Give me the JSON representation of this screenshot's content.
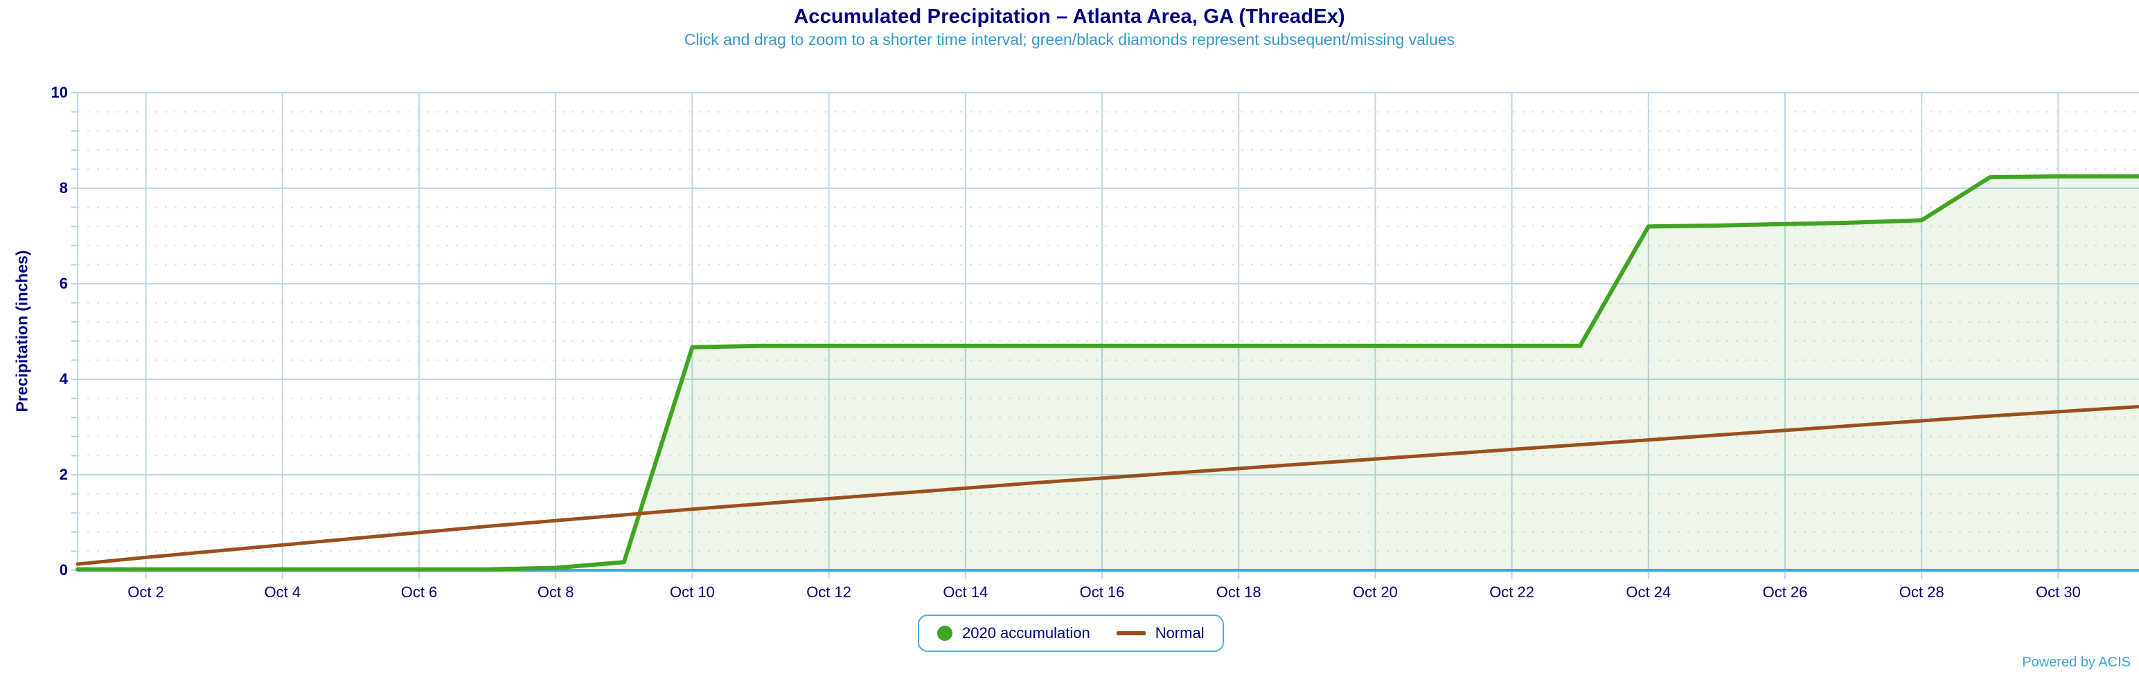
{
  "header": {
    "title": "Accumulated Precipitation – Atlanta Area, GA (ThreadEx)",
    "subtitle": "Click and drag to zoom to a shorter time interval; green/black diamonds represent subsequent/missing values"
  },
  "credits": "Powered by ACIS",
  "colors": {
    "title": "#000080",
    "subtitle": "#3399cc",
    "axis_label": "#000080",
    "grid_major": "#bdd7e9",
    "grid_minor": "#d6e3ee",
    "minor_tick": "#b6cfe2",
    "axis_line": "#3fa8da",
    "plot_border": "#bdd7e9",
    "legend_border": "#54a9dc",
    "credits": "#3ba0d8"
  },
  "chart_data": {
    "type": "line",
    "title": "Accumulated Precipitation – Atlanta Area, GA (ThreadEx)",
    "xlabel": "",
    "ylabel": "Precipitation (inches)",
    "ylim": [
      0,
      10
    ],
    "y_ticks": [
      0,
      2,
      4,
      6,
      8,
      10
    ],
    "y_minor_step": 0.4,
    "grid": true,
    "legend_position": "bottom-center",
    "x_days": [
      1,
      2,
      3,
      4,
      5,
      6,
      7,
      8,
      9,
      10,
      11,
      12,
      13,
      14,
      15,
      16,
      17,
      18,
      19,
      20,
      21,
      22,
      23,
      24,
      25,
      26,
      27,
      28,
      29,
      30,
      31
    ],
    "x_tick_days": [
      2,
      4,
      6,
      8,
      10,
      12,
      14,
      16,
      18,
      20,
      22,
      24,
      26,
      28,
      30
    ],
    "x_tick_labels": [
      "Oct 2",
      "Oct 4",
      "Oct 6",
      "Oct 8",
      "Oct 10",
      "Oct 12",
      "Oct 14",
      "Oct 16",
      "Oct 18",
      "Oct 20",
      "Oct 22",
      "Oct 24",
      "Oct 26",
      "Oct 28",
      "Oct 30"
    ],
    "series": [
      {
        "name": "2020 accumulation",
        "color": "#3fa41f",
        "fill": "rgba(76,165,40,0.10)",
        "marker": "circle",
        "line_width": 6,
        "values": [
          0.02,
          0.02,
          0.02,
          0.02,
          0.02,
          0.02,
          0.02,
          0.05,
          0.17,
          4.67,
          4.7,
          4.7,
          4.7,
          4.7,
          4.7,
          4.7,
          4.7,
          4.7,
          4.7,
          4.7,
          4.7,
          4.7,
          4.7,
          7.2,
          7.22,
          7.25,
          7.28,
          7.33,
          8.23,
          8.25,
          8.25
        ]
      },
      {
        "name": "Normal",
        "color": "#9c4f1d",
        "fill": null,
        "marker": "line",
        "line_width": 5,
        "values": [
          0.13,
          0.27,
          0.4,
          0.53,
          0.66,
          0.79,
          0.92,
          1.04,
          1.16,
          1.28,
          1.39,
          1.5,
          1.61,
          1.72,
          1.83,
          1.93,
          2.03,
          2.13,
          2.23,
          2.33,
          2.43,
          2.53,
          2.63,
          2.73,
          2.83,
          2.93,
          3.03,
          3.13,
          3.23,
          3.32,
          3.41
        ]
      }
    ]
  }
}
